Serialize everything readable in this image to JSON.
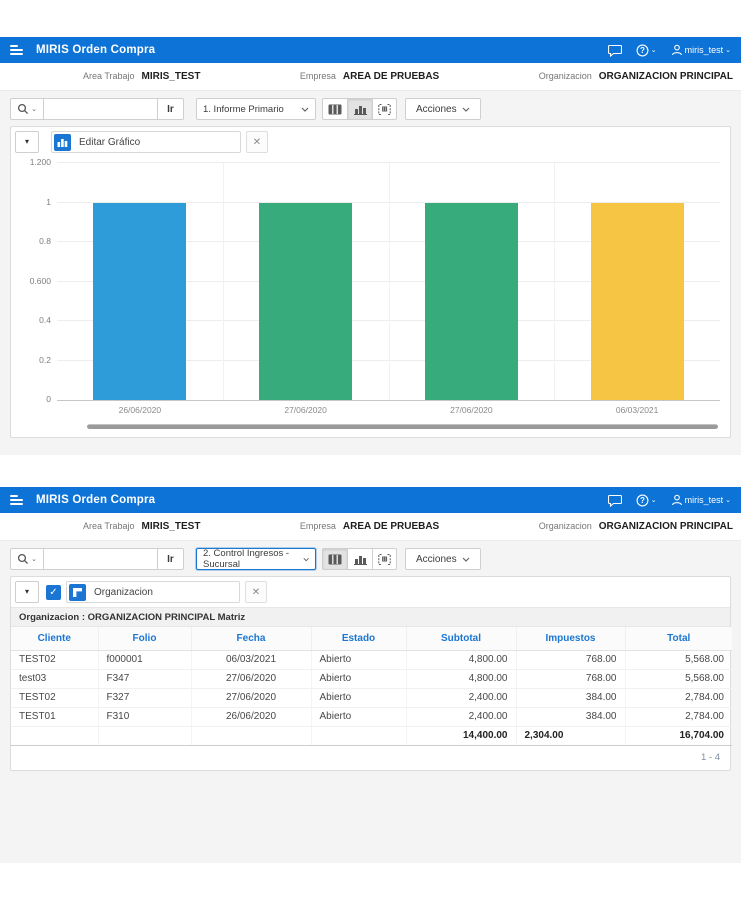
{
  "colors": {
    "header_blue": "#0d73d6",
    "link_blue": "#1a76d2",
    "bar_blue": "#2e9cd8",
    "bar_green": "#38ab7d",
    "bar_yellow": "#f6c544"
  },
  "icons": {
    "close": "✕",
    "caret_down": "▾",
    "check": "✓",
    "chevron_small": "⌄"
  },
  "header": {
    "app_title": "MIRIS Orden Compra",
    "user": "miris_test",
    "workspace_label": "Area Trabajo",
    "workspace_value": "MIRIS_TEST",
    "company_label": "Empresa",
    "company_value": "AREA DE PRUEBAS",
    "org_label": "Organizacion",
    "org_value": "ORGANIZACION PRINCIPAL"
  },
  "toolbar1": {
    "go_label": "Ir",
    "report_select": "1. Informe Primario",
    "actions_label": "Acciones"
  },
  "toolbar2": {
    "go_label": "Ir",
    "report_select": "2. Control Ingresos - Sucursal",
    "actions_label": "Acciones"
  },
  "chart_panel": {
    "filter_chip": "Editar Gráfico"
  },
  "report_panel": {
    "filter_chip": "Organizacion",
    "break_header": "Organizacion : ORGANIZACION PRINCIPAL Matriz",
    "columns": [
      "Cliente",
      "Folio",
      "Fecha",
      "Estado",
      "Subtotal",
      "Impuestos",
      "Total"
    ],
    "rows": [
      [
        "TEST02",
        "f000001",
        "06/03/2021",
        "Abierto",
        "4,800.00",
        "768.00",
        "5,568.00"
      ],
      [
        "test03",
        "F347",
        "27/06/2020",
        "Abierto",
        "4,800.00",
        "768.00",
        "5,568.00"
      ],
      [
        "TEST02",
        "F327",
        "27/06/2020",
        "Abierto",
        "2,400.00",
        "384.00",
        "2,784.00"
      ],
      [
        "TEST01",
        "F310",
        "26/06/2020",
        "Abierto",
        "2,400.00",
        "384.00",
        "2,784.00"
      ]
    ],
    "summary": {
      "subtotal": "14,400.00",
      "impuestos": "2,304.00",
      "total": "16,704.00"
    },
    "pagination": "1 - 4"
  },
  "chart_data": {
    "type": "bar",
    "categories": [
      "26/06/2020",
      "27/06/2020",
      "27/06/2020",
      "06/03/2021"
    ],
    "values": [
      1,
      1,
      1,
      1
    ],
    "bar_colors": [
      "#2e9cd8",
      "#38ab7d",
      "#38ab7d",
      "#f6c544"
    ],
    "title": "",
    "xlabel": "",
    "ylabel": "",
    "ylim": [
      0,
      1.2
    ],
    "y_tick_values": [
      1.2,
      1,
      0.8,
      0.6,
      0.4,
      0.2,
      0
    ],
    "y_ticks": [
      "1.200",
      "1",
      "0.8",
      "0.600",
      "0.4",
      "0.2",
      "0"
    ],
    "grid": true,
    "legend": false
  }
}
